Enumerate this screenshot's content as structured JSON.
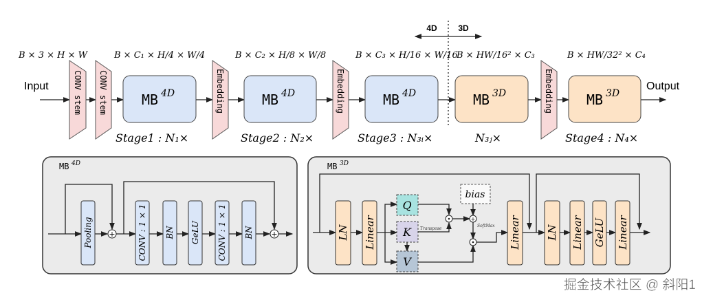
{
  "top": {
    "input_label": "Input",
    "output_label": "Output",
    "conv_stem": "CONV stem",
    "embedding": "Embedding",
    "mb": "MB",
    "sup_4d": "4D",
    "sup_3d": "3D",
    "dim_4d": "4D",
    "dim_3d": "3D",
    "shapes": [
      "B × 3 × H × W",
      "B × C₁ × H/4 × W/4",
      "B × C₂ × H/8 × W/8",
      "B × C₃ × H/16 × W/16",
      "B × HW/16² × C₃",
      "B × HW/32² × C₄"
    ],
    "stages": [
      "Stage1 : N₁×",
      "Stage2 : N₂×",
      "Stage3 : N₃ᵢ×",
      "N₃ⱼ×",
      "Stage4 : N₄×"
    ]
  },
  "mb4d": {
    "title": "MB",
    "sup": "4D",
    "blocks": [
      "Pooling",
      "CONV : 1 × 1",
      "BN",
      "GeLU",
      "CONV : 1 × 1",
      "BN"
    ]
  },
  "mb3d": {
    "title": "MB",
    "sup": "3D",
    "ln": "LN",
    "linear": "Linear",
    "q": "Q",
    "k": "K",
    "v": "V",
    "bias": "bias",
    "transpose": "Transpose",
    "softmax": "SoftMax",
    "ffn": [
      "LN",
      "Linear",
      "GeLU",
      "Linear"
    ]
  },
  "watermark": "掘金技术社区 @ 斜阳1",
  "colors": {
    "blue": "#dae6f8",
    "orange": "#fde3c6",
    "pink": "#f8d9d9",
    "panel": "#ebebeb",
    "q": "#a8e3e0",
    "k": "#d8d4ea",
    "v": "#b6c6d6"
  }
}
